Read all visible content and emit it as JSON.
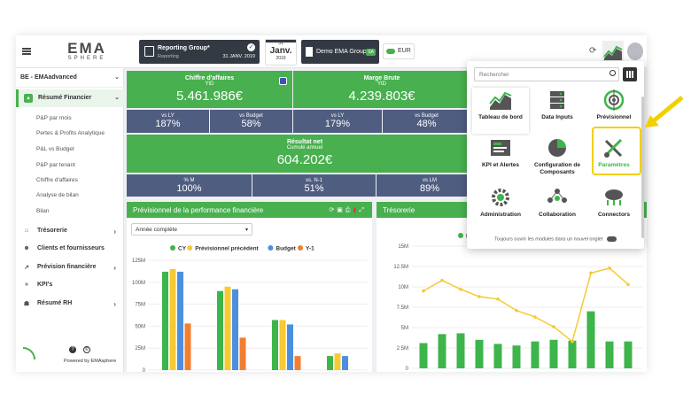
{
  "topbar": {
    "logo_main": "EMA",
    "logo_sub": "SPHERE",
    "reporting_group_title": "Reporting Group*",
    "reporting_group_sub": "Reporting",
    "reporting_date": "31 JANV. 2019",
    "cal_day": "31",
    "cal_month": "Janv.",
    "cal_year": "2019",
    "company": "Demo EMA Group",
    "company_badge": "SA",
    "currency": "EUR"
  },
  "sidebar": {
    "entity": "BE - EMAadvanced",
    "resume_financier": "Résumé Financier",
    "sub_items": [
      "P&P par mois",
      "Pertes & Profits Analytique",
      "P&L vs Budget",
      "P&P par tenant",
      "Chiffre d'affaires",
      "Analyse de bilan",
      "Bilan"
    ],
    "main_items": [
      "Trésorerie",
      "Clients et fournisseurs",
      "Prévision financière",
      "KPI's",
      "Résumé RH"
    ],
    "powered_by": "Powered by EMAsphere"
  },
  "kpis": {
    "ca_label": "Chiffre d'affaires",
    "ca_sub": "YtD",
    "ca_value": "5.461.986€",
    "mb_label": "Marge Brute",
    "mb_sub": "YtD",
    "mb_value": "4.239.803€",
    "vs_ly_label": "vs LY",
    "vs_budget_label": "vs Budget",
    "ca_vs_ly": "187%",
    "ca_vs_budget": "58%",
    "mb_vs_ly": "179%",
    "mb_vs_budget": "48%",
    "rn_label": "Résultat net",
    "rn_sub": "Cumulé annuel",
    "rn_value": "604.202€",
    "pm_label": "% M",
    "pm_value": "100%",
    "n1_label": "vs. N-1",
    "n1_value": "51%",
    "lm_label": "vs LM",
    "lm_value": "89%"
  },
  "panel_left": {
    "title": "Prévisionnel de la performance financière",
    "select_value": "Année complète"
  },
  "panel_right": {
    "title": "Trésorerie",
    "legend": "Paieme"
  },
  "chart_data": [
    {
      "type": "bar",
      "title": "",
      "series": [
        {
          "name": "CY",
          "color": "#3db54a",
          "values": [
            112,
            90,
            57,
            16
          ]
        },
        {
          "name": "Prévisionnel précédent",
          "color": "#f7c933",
          "values": [
            115,
            95,
            57,
            19
          ]
        },
        {
          "name": "Budget",
          "color": "#4c8fe0",
          "values": [
            112,
            92,
            52,
            16
          ]
        },
        {
          "name": "Y-1",
          "color": "#f47e2f",
          "values": [
            53,
            37,
            16,
            0
          ]
        }
      ],
      "yticks": [
        "0",
        "25M",
        "50M",
        "75M",
        "100M",
        "125M"
      ],
      "ylim": [
        0,
        125
      ]
    },
    {
      "type": "bar",
      "title": "",
      "series": [
        {
          "name": "Paieme",
          "color": "#3db54a",
          "values": [
            3.1,
            4.2,
            4.3,
            3.5,
            3,
            2.8,
            3.3,
            3.5,
            3.4,
            7,
            3.3,
            3.3
          ]
        },
        {
          "name": "",
          "color": "#f7c933",
          "values": [
            9.5,
            10.8,
            9.7,
            8.8,
            8.5,
            7.1,
            6.3,
            5.1,
            3.3,
            11.7,
            12.3,
            10.3
          ]
        }
      ],
      "yticks": [
        "0",
        "2.5M",
        "5M",
        "7.5M",
        "10M",
        "12.5M",
        "15M"
      ],
      "ylim": [
        0,
        15
      ]
    }
  ],
  "modules": {
    "search_placeholder": "Rechercher",
    "items": [
      "Tableau de bord",
      "Data Inputs",
      "Prévisionnel",
      "KPI et Alertes",
      "Configuration de Composants",
      "Paramètres",
      "Administration",
      "Collaboration",
      "Connectors"
    ],
    "footer": "Toujours ouvrir les modules dans un nouvel onglet"
  },
  "colors": {
    "green": "#48b04f",
    "navy": "#4f5d80",
    "highlight": "#f2d000"
  }
}
